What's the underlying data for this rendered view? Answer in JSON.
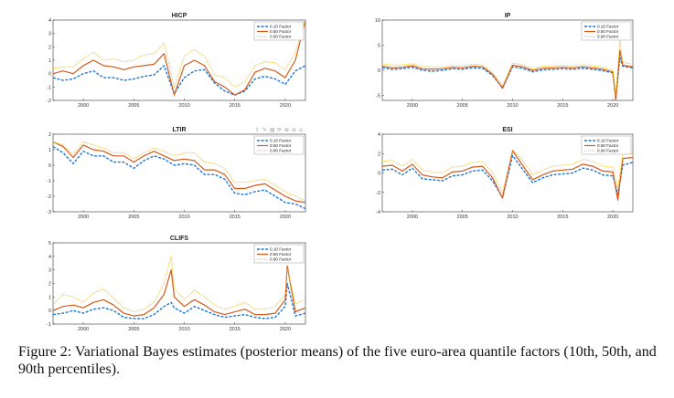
{
  "caption": {
    "label": "Figure 2:",
    "text": "Variational Bayes estimates (posterior means) of the five euro-area quantile factors (10th, 50th, and 90th percentiles)."
  },
  "legend_labels": [
    "0.10 Factor",
    "0.50 Factor",
    "0.90 Factor"
  ],
  "colors": {
    "q10": "#1f77d4",
    "q50": "#d45a1a",
    "q90": "#e6c035"
  },
  "toolbar_icons": [
    "export-icon",
    "brush-icon",
    "datatips-icon",
    "rotate-icon",
    "zoom-in-icon",
    "zoom-out-icon",
    "home-icon"
  ],
  "chart_data": [
    {
      "type": "line",
      "title": "HICP",
      "x": [
        1997,
        1998,
        1999,
        2000,
        2001,
        2002,
        2003,
        2004,
        2005,
        2006,
        2007,
        2008,
        2009,
        2010,
        2011,
        2012,
        2013,
        2014,
        2015,
        2016,
        2017,
        2018,
        2019,
        2020,
        2021,
        2022
      ],
      "xlim": [
        1997,
        2022
      ],
      "ylim": [
        -2,
        4
      ],
      "xticks": [
        2000,
        2005,
        2010,
        2015,
        2020
      ],
      "yticks": [
        -2,
        -1,
        0,
        1,
        2,
        3,
        4
      ],
      "series": [
        {
          "name": "0.10 Factor",
          "values": [
            -0.3,
            -0.5,
            -0.4,
            0.0,
            0.2,
            -0.3,
            -0.3,
            -0.5,
            -0.4,
            -0.2,
            -0.1,
            0.6,
            -1.5,
            -0.3,
            0.2,
            0.3,
            -0.7,
            -1.3,
            -1.6,
            -1.3,
            -0.4,
            -0.2,
            -0.4,
            -0.8,
            0.2,
            0.6
          ]
        },
        {
          "name": "0.50 Factor",
          "values": [
            0.0,
            0.2,
            0.0,
            0.6,
            1.0,
            0.6,
            0.5,
            0.3,
            0.5,
            0.6,
            0.7,
            1.5,
            -1.6,
            0.6,
            1.0,
            0.6,
            -0.6,
            -1.0,
            -1.6,
            -1.2,
            0.1,
            0.4,
            0.2,
            -0.3,
            1.0,
            4.0
          ]
        },
        {
          "name": "0.90 Factor",
          "values": [
            0.4,
            0.5,
            0.5,
            1.1,
            1.6,
            1.0,
            1.1,
            0.9,
            1.0,
            1.4,
            1.5,
            2.3,
            -1.0,
            1.3,
            1.8,
            1.3,
            -0.1,
            -0.3,
            -1.0,
            -0.6,
            0.6,
            0.9,
            0.8,
            0.3,
            1.6,
            4.0
          ]
        }
      ]
    },
    {
      "type": "line",
      "title": "IP",
      "x": [
        1997,
        1998,
        1999,
        2000,
        2001,
        2002,
        2003,
        2004,
        2005,
        2006,
        2007,
        2008,
        2009,
        2010,
        2011,
        2012,
        2013,
        2014,
        2015,
        2016,
        2017,
        2018,
        2019,
        2020,
        2020.3,
        2020.7,
        2021,
        2022
      ],
      "xlim": [
        1997,
        2022
      ],
      "ylim": [
        -6,
        10
      ],
      "xticks": [
        2000,
        2005,
        2010,
        2015,
        2020
      ],
      "yticks": [
        -5,
        0,
        5,
        10
      ],
      "series": [
        {
          "name": "0.10 Factor",
          "values": [
            0.5,
            0.2,
            0.3,
            0.6,
            0.0,
            -0.2,
            0.0,
            0.3,
            0.2,
            0.5,
            0.4,
            -1.0,
            -3.5,
            0.7,
            0.4,
            -0.3,
            0.1,
            0.2,
            0.3,
            0.2,
            0.4,
            0.2,
            -0.1,
            -0.5,
            -5.5,
            2.5,
            0.8,
            0.5
          ]
        },
        {
          "name": "0.50 Factor",
          "values": [
            0.8,
            0.5,
            0.6,
            0.9,
            0.3,
            0.2,
            0.3,
            0.6,
            0.5,
            0.8,
            0.7,
            -0.8,
            -3.6,
            1.0,
            0.7,
            0.0,
            0.4,
            0.5,
            0.6,
            0.5,
            0.7,
            0.5,
            0.2,
            -0.3,
            -6.0,
            4.0,
            1.0,
            0.7
          ]
        },
        {
          "name": "0.90 Factor",
          "values": [
            1.3,
            1.0,
            1.1,
            1.3,
            0.8,
            0.7,
            0.7,
            1.0,
            0.9,
            1.2,
            1.1,
            -0.4,
            -3.0,
            1.5,
            1.1,
            0.4,
            0.8,
            0.9,
            1.0,
            0.9,
            1.1,
            0.9,
            0.6,
            0.1,
            -5.0,
            6.0,
            1.6,
            1.2
          ]
        }
      ]
    },
    {
      "type": "line",
      "title": "LTIR",
      "x": [
        1997,
        1998,
        1999,
        2000,
        2001,
        2002,
        2003,
        2004,
        2005,
        2006,
        2007,
        2008,
        2009,
        2010,
        2011,
        2012,
        2013,
        2014,
        2015,
        2016,
        2017,
        2018,
        2019,
        2020,
        2021,
        2022
      ],
      "xlim": [
        1997,
        2022
      ],
      "ylim": [
        -3,
        2
      ],
      "xticks": [
        2000,
        2005,
        2010,
        2015,
        2020
      ],
      "yticks": [
        -3,
        -2,
        -1,
        0,
        1,
        2
      ],
      "series": [
        {
          "name": "0.10 Factor",
          "values": [
            1.2,
            0.8,
            0.1,
            0.9,
            0.6,
            0.6,
            0.2,
            0.2,
            -0.2,
            0.3,
            0.6,
            0.4,
            0.0,
            0.1,
            0.0,
            -0.6,
            -0.6,
            -0.9,
            -1.8,
            -1.9,
            -1.7,
            -1.6,
            -2.0,
            -2.4,
            -2.5,
            -2.8
          ]
        },
        {
          "name": "0.50 Factor",
          "values": [
            1.5,
            1.2,
            0.5,
            1.3,
            1.0,
            0.9,
            0.6,
            0.6,
            0.2,
            0.6,
            0.9,
            0.6,
            0.3,
            0.4,
            0.3,
            -0.3,
            -0.3,
            -0.6,
            -1.5,
            -1.5,
            -1.3,
            -1.2,
            -1.6,
            -2.0,
            -2.3,
            -2.4
          ]
        },
        {
          "name": "0.90 Factor",
          "values": [
            1.5,
            1.3,
            0.7,
            1.5,
            1.3,
            1.1,
            0.8,
            0.8,
            0.4,
            0.8,
            1.1,
            0.9,
            0.6,
            0.8,
            0.8,
            0.2,
            0.1,
            -0.2,
            -1.1,
            -1.1,
            -1.0,
            -0.9,
            -1.3,
            -1.7,
            -2.0,
            -2.3
          ]
        }
      ]
    },
    {
      "type": "line",
      "title": "ESI",
      "x": [
        1997,
        1998,
        1999,
        2000,
        2001,
        2002,
        2003,
        2004,
        2005,
        2006,
        2007,
        2008,
        2009,
        2010,
        2011,
        2012,
        2013,
        2014,
        2015,
        2016,
        2017,
        2018,
        2019,
        2020,
        2020.5,
        2021,
        2022
      ],
      "xlim": [
        1997,
        2022
      ],
      "ylim": [
        -4,
        4
      ],
      "xticks": [
        2000,
        2005,
        2010,
        2015,
        2020
      ],
      "yticks": [
        -4,
        -2,
        0,
        2,
        4
      ],
      "series": [
        {
          "name": "0.10 Factor",
          "values": [
            0.3,
            0.4,
            -0.2,
            0.5,
            -0.6,
            -0.7,
            -0.8,
            -0.3,
            -0.2,
            0.2,
            0.3,
            -0.8,
            -2.5,
            1.8,
            0.4,
            -1.0,
            -0.5,
            -0.2,
            -0.1,
            0.0,
            0.5,
            0.3,
            -0.2,
            -0.3,
            -2.2,
            0.8,
            1.1
          ]
        },
        {
          "name": "0.50 Factor",
          "values": [
            0.7,
            0.8,
            0.2,
            0.9,
            -0.2,
            -0.4,
            -0.5,
            0.1,
            0.2,
            0.6,
            0.7,
            -0.5,
            -2.6,
            2.3,
            0.8,
            -0.7,
            -0.2,
            0.2,
            0.3,
            0.4,
            0.9,
            0.7,
            0.2,
            0.1,
            -2.8,
            1.5,
            1.6
          ]
        },
        {
          "name": "0.90 Factor",
          "values": [
            1.2,
            1.3,
            0.7,
            1.4,
            0.3,
            0.1,
            0.0,
            0.6,
            0.7,
            1.1,
            1.2,
            0.0,
            -2.0,
            2.4,
            1.3,
            -0.2,
            0.3,
            0.7,
            0.8,
            0.9,
            1.4,
            1.2,
            0.7,
            0.6,
            -1.6,
            2.0,
            2.0
          ]
        }
      ]
    },
    {
      "type": "line",
      "title": "CLIFS",
      "x": [
        1997,
        1998,
        1999,
        2000,
        2001,
        2002,
        2003,
        2004,
        2005,
        2006,
        2007,
        2008,
        2008.7,
        2009,
        2010,
        2011,
        2012,
        2013,
        2014,
        2015,
        2016,
        2017,
        2018,
        2019,
        2020,
        2020.2,
        2021,
        2022
      ],
      "xlim": [
        1997,
        2022
      ],
      "ylim": [
        -1,
        5
      ],
      "xticks": [
        2000,
        2005,
        2010,
        2015,
        2020
      ],
      "yticks": [
        -1,
        0,
        1,
        2,
        3,
        4,
        5
      ],
      "series": [
        {
          "name": "0.10 Factor",
          "values": [
            -0.3,
            -0.2,
            0.0,
            -0.2,
            0.1,
            0.2,
            0.0,
            -0.5,
            -0.6,
            -0.6,
            -0.3,
            0.3,
            0.6,
            0.2,
            -0.2,
            0.3,
            0.0,
            -0.3,
            -0.5,
            -0.4,
            -0.3,
            -0.5,
            -0.6,
            -0.5,
            0.3,
            2.0,
            -0.4,
            -0.2
          ]
        },
        {
          "name": "0.50 Factor",
          "values": [
            0.0,
            0.3,
            0.4,
            0.2,
            0.6,
            0.8,
            0.4,
            -0.2,
            -0.4,
            -0.3,
            0.2,
            1.2,
            3.0,
            1.0,
            0.3,
            0.8,
            0.4,
            -0.1,
            -0.3,
            -0.1,
            0.1,
            -0.3,
            -0.3,
            -0.2,
            0.8,
            3.3,
            -0.1,
            0.2
          ]
        },
        {
          "name": "0.90 Factor",
          "values": [
            0.4,
            1.2,
            1.0,
            0.6,
            1.3,
            1.6,
            0.9,
            0.2,
            -0.1,
            0.1,
            0.6,
            2.0,
            4.0,
            1.6,
            0.8,
            1.5,
            1.0,
            0.4,
            0.1,
            0.3,
            0.6,
            0.1,
            0.1,
            0.3,
            1.2,
            3.1,
            0.5,
            0.8
          ]
        }
      ]
    }
  ]
}
